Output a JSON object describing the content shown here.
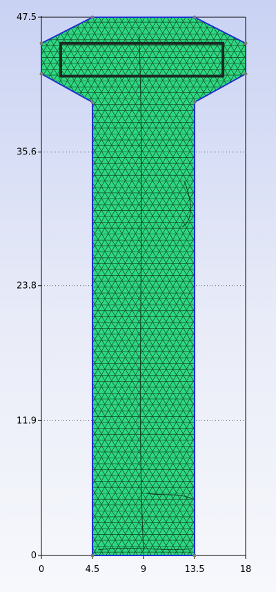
{
  "chart_data": {
    "type": "diagram",
    "title": "",
    "xlabel": "",
    "ylabel": "",
    "xlim": [
      0,
      18
    ],
    "ylim": [
      0,
      47.5
    ],
    "x_ticks": [
      {
        "value": 0,
        "label": "0"
      },
      {
        "value": 4.5,
        "label": "4.5"
      },
      {
        "value": 9,
        "label": "9"
      },
      {
        "value": 13.5,
        "label": "13.5"
      },
      {
        "value": 18,
        "label": "18"
      }
    ],
    "y_ticks": [
      {
        "value": 0,
        "label": "0"
      },
      {
        "value": 11.9,
        "label": "11.9"
      },
      {
        "value": 23.8,
        "label": "23.8"
      },
      {
        "value": 35.6,
        "label": "35.6"
      },
      {
        "value": 47.5,
        "label": "47.5"
      }
    ],
    "grid": "dotted horizontal",
    "outline": [
      [
        4.5,
        0
      ],
      [
        13.5,
        0
      ],
      [
        13.5,
        40
      ],
      [
        18,
        42.5
      ],
      [
        18,
        45.2
      ],
      [
        13.5,
        47.5
      ],
      [
        4.5,
        47.5
      ],
      [
        0,
        45.2
      ],
      [
        0,
        42.5
      ],
      [
        4.5,
        40
      ]
    ],
    "inner_rectangle": {
      "x0": 1.7,
      "y0": 42.3,
      "x1": 16.0,
      "y1": 45.2
    },
    "mesh": {
      "type": "triangular",
      "element_size": 0.6
    },
    "colors": {
      "mesh_fill": "#2ed882",
      "mesh_lines": "#0a2a14",
      "boundary": "#1f2fd0",
      "rectangle": "#1b2b22",
      "vertex": "#7a7a7a",
      "axis": "#000000",
      "grid": "#555555"
    }
  }
}
